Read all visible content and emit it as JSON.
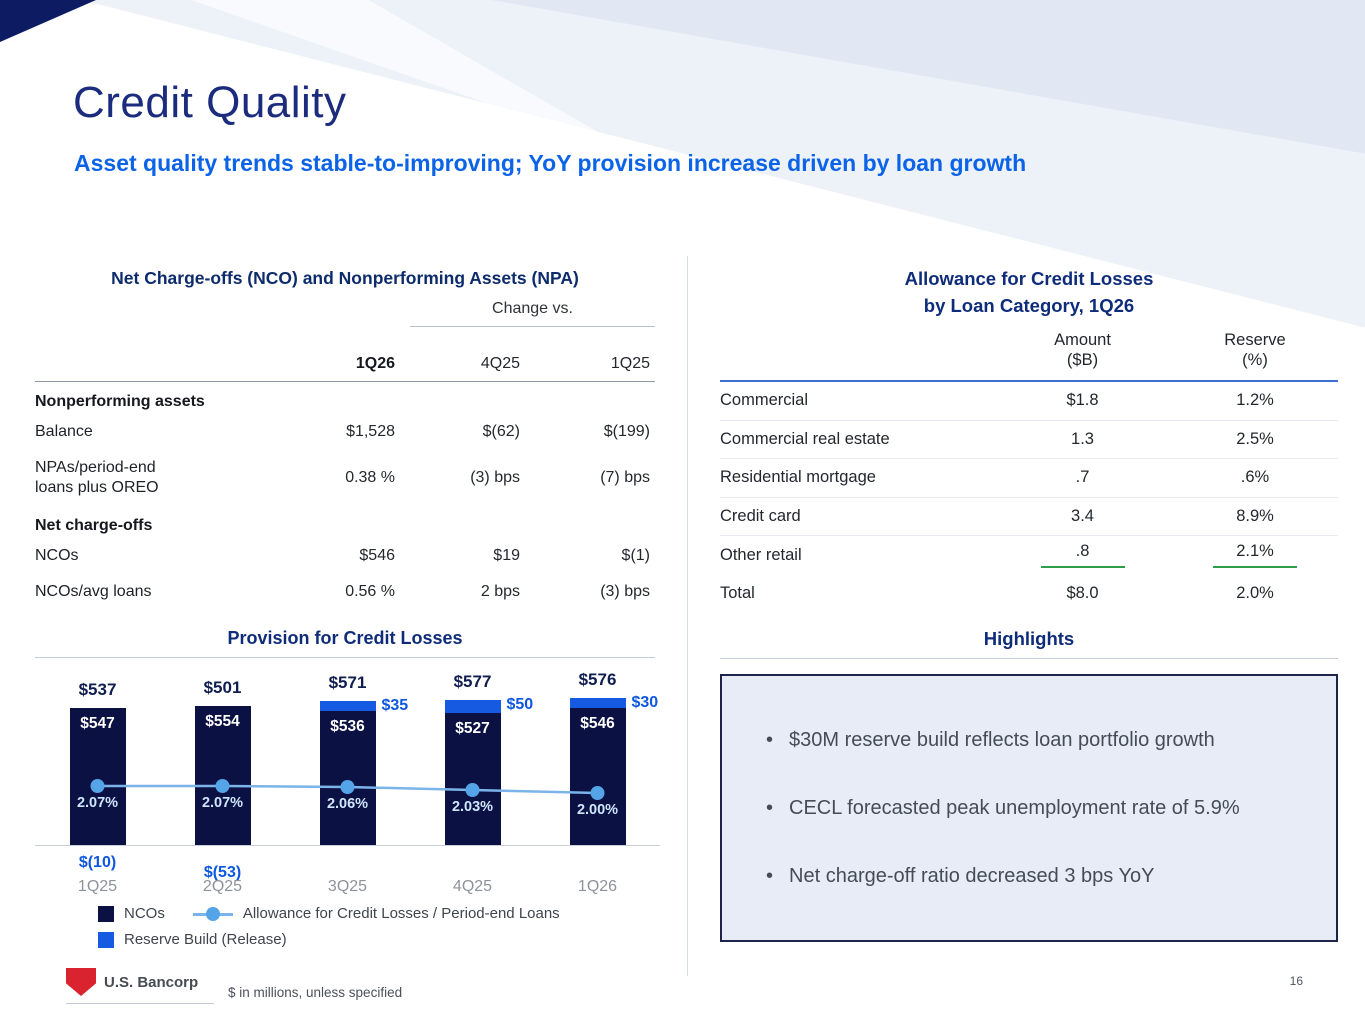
{
  "slide": {
    "title": "Credit Quality",
    "subtitle": "Asset quality trends stable-to-improving; YoY provision increase driven by loan growth",
    "page_number": "16",
    "footnote": "$ in millions, unless specified",
    "brand": "U.S. Bancorp"
  },
  "nco_table": {
    "title": "Net Charge-offs (NCO) and Nonperforming Assets (NPA)",
    "change_vs": "Change vs.",
    "col_headers": [
      "1Q26",
      "4Q25",
      "1Q25"
    ],
    "rows": [
      {
        "section": true,
        "label": "Nonperforming assets"
      },
      {
        "label": "Balance",
        "values": [
          "$1,528",
          "$(62)",
          "$(199)"
        ]
      },
      {
        "label_lines": [
          "NPAs/period-end",
          "loans plus OREO"
        ],
        "values": [
          "0.38 %",
          "(3) bps",
          "(7) bps"
        ]
      },
      {
        "section": true,
        "label": "Net charge-offs"
      },
      {
        "label": "NCOs",
        "values": [
          "$546",
          "$19",
          "$(1)"
        ]
      },
      {
        "label": "NCOs/avg loans",
        "values": [
          "0.56 %",
          "2 bps",
          "(3) bps"
        ]
      }
    ]
  },
  "acl_table": {
    "title_lines": [
      "Allowance for Credit Losses",
      "by Loan Category, 1Q26"
    ],
    "col_headers": [
      [
        "Amount",
        "($B)"
      ],
      [
        "Reserve",
        "(%)"
      ]
    ],
    "rows": [
      {
        "label": "Commercial",
        "amount": "$1.8",
        "reserve": "1.2%"
      },
      {
        "label": "Commercial real estate",
        "amount": "1.3",
        "reserve": "2.5%"
      },
      {
        "label": "Residential mortgage",
        "amount": ".7",
        "reserve": ".6%"
      },
      {
        "label": "Credit card",
        "amount": "3.4",
        "reserve": "8.9%"
      },
      {
        "label": "Other retail",
        "amount": ".8",
        "reserve": "2.1%",
        "green_underline": true
      },
      {
        "label": "Total",
        "amount": "$8.0",
        "reserve": "2.0%"
      }
    ]
  },
  "chart_data": {
    "type": "bar",
    "title": "Provision for Credit Losses",
    "categories": [
      "1Q25",
      "2Q25",
      "3Q25",
      "4Q25",
      "1Q26"
    ],
    "provision_totals": [
      "$537",
      "$501",
      "$571",
      "$577",
      "$576"
    ],
    "series": [
      {
        "name": "NCOs",
        "values": [
          547,
          554,
          536,
          527,
          546
        ],
        "labels": [
          "$547",
          "$554",
          "$536",
          "$527",
          "$546"
        ],
        "color": "#0b1142"
      },
      {
        "name": "Reserve Build (Release)",
        "values": [
          -10,
          -53,
          35,
          50,
          30
        ],
        "labels": [
          "$(10)",
          "$(53)",
          "$35",
          "$50",
          "$30"
        ],
        "color": "#155ae0"
      },
      {
        "name": "Allowance for Credit Losses / Period-end Loans",
        "values": [
          2.07,
          2.07,
          2.06,
          2.03,
          2.0
        ],
        "labels": [
          "2.07%",
          "2.07%",
          "2.06%",
          "2.03%",
          "2.00%"
        ],
        "color": "#7ab4ea"
      }
    ],
    "legend_rows": [
      [
        {
          "type": "square-navy",
          "label": "NCOs"
        },
        {
          "type": "line-dot",
          "label": "Allowance for Credit Losses / Period-end Loans"
        }
      ],
      [
        {
          "type": "square-blue",
          "label": "Reserve Build (Release)"
        }
      ]
    ],
    "ylim": [
      0,
      650
    ],
    "grid": false,
    "legend_position": "bottom"
  },
  "highlights": {
    "title": "Highlights",
    "bullets": [
      "$30M reserve build reflects loan portfolio growth",
      "CECL forecasted peak unemployment rate of 5.9%",
      "Net charge-off ratio decreased 3 bps YoY"
    ]
  }
}
